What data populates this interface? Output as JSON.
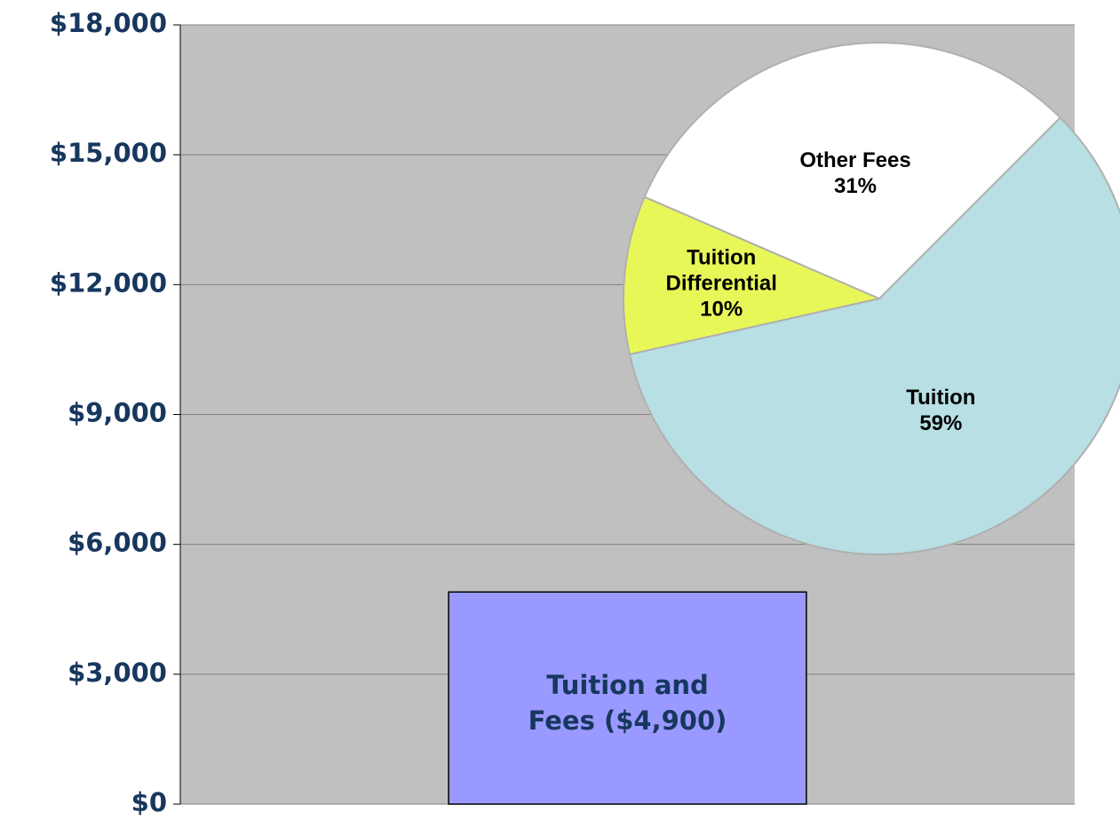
{
  "chart_data": [
    {
      "type": "bar",
      "categories": [
        "Tuition and Fees ($4,900)"
      ],
      "values": [
        4900
      ],
      "color": "#9999ff",
      "ylim": [
        0,
        18000
      ],
      "yticks": [
        {
          "value": 0,
          "label": "$0"
        },
        {
          "value": 3000,
          "label": "$3,000"
        },
        {
          "value": 6000,
          "label": "$6,000"
        },
        {
          "value": 9000,
          "label": "$9,000"
        },
        {
          "value": 12000,
          "label": "$12,000"
        },
        {
          "value": 15000,
          "label": "$15,000"
        },
        {
          "value": 18000,
          "label": "$18,000"
        }
      ],
      "grid": true
    },
    {
      "type": "pie",
      "categories": [
        "Tuition",
        "Tuition Differential",
        "Other Fees"
      ],
      "values": [
        59,
        10,
        31
      ],
      "value_labels": [
        "59%",
        "10%",
        "31%"
      ],
      "colors": [
        "#b8dfe3",
        "#e8f758",
        "#ffffff"
      ]
    }
  ]
}
